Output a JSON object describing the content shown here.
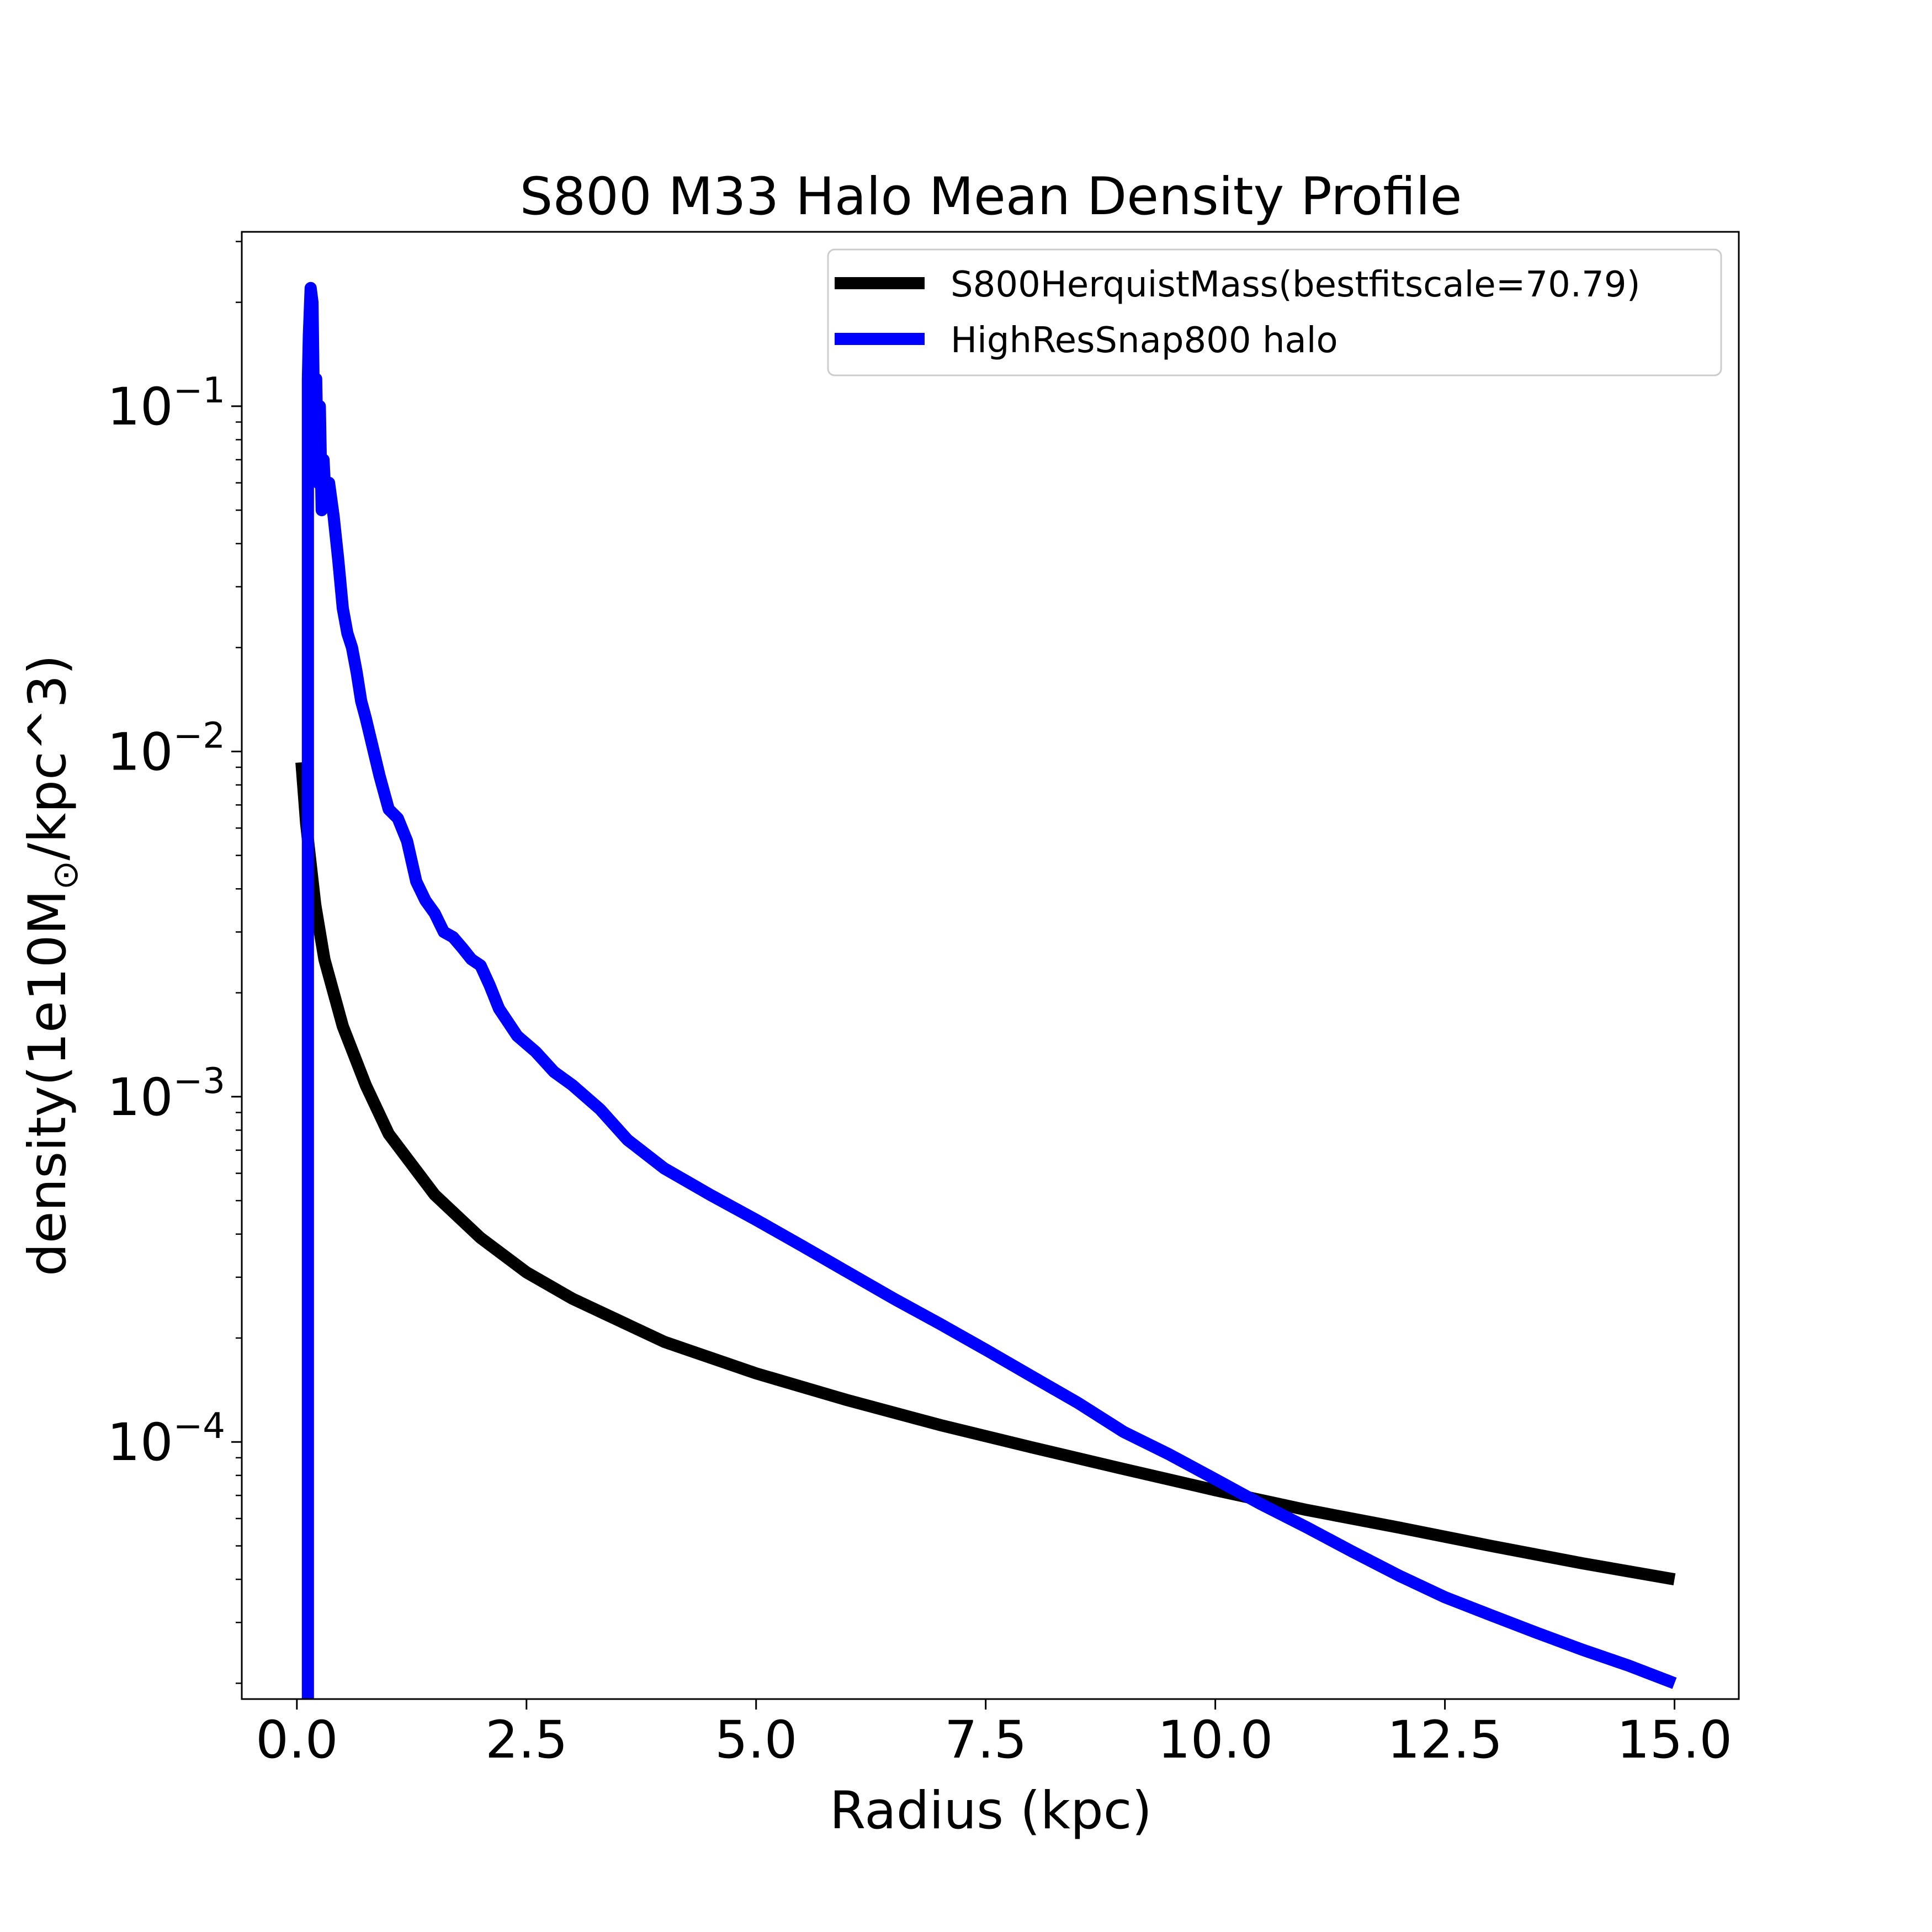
{
  "chart_data": {
    "type": "line",
    "title": "S800 M33 Halo Mean Density Profile",
    "xlabel": "Radius (kpc)",
    "ylabel_main": "density(1e10M",
    "ylabel_sub": "⊙",
    "ylabel_tail": "/kpc^3)",
    "xlim": [
      -0.6,
      15.7
    ],
    "ylim": [
      1.8e-05,
      0.32
    ],
    "yscale": "log",
    "grid": false,
    "legend_position": "top-right",
    "x_ticks": [
      {
        "value": 0.0,
        "label": "0.0"
      },
      {
        "value": 2.5,
        "label": "2.5"
      },
      {
        "value": 5.0,
        "label": "5.0"
      },
      {
        "value": 7.5,
        "label": "7.5"
      },
      {
        "value": 10.0,
        "label": "10.0"
      },
      {
        "value": 12.5,
        "label": "12.5"
      },
      {
        "value": 15.0,
        "label": "15.0"
      }
    ],
    "y_ticks": [
      {
        "value": 0.1,
        "base": "10",
        "exp": "−1"
      },
      {
        "value": 0.01,
        "base": "10",
        "exp": "−2"
      },
      {
        "value": 0.001,
        "base": "10",
        "exp": "−3"
      },
      {
        "value": 0.0001,
        "base": "10",
        "exp": "−4"
      }
    ],
    "series": [
      {
        "name": "S800HerquistMass(bestfitscale=70.79)",
        "color": "#000000",
        "x": [
          0.05,
          0.1,
          0.2,
          0.3,
          0.5,
          0.75,
          1.0,
          1.5,
          2.0,
          2.5,
          3.0,
          4.0,
          5.0,
          6.0,
          7.0,
          8.0,
          9.0,
          10.0,
          11.0,
          12.0,
          13.0,
          14.0,
          15.0
        ],
        "y": [
          0.0093,
          0.0062,
          0.0036,
          0.0025,
          0.0016,
          0.00108,
          0.00078,
          0.00052,
          0.00039,
          0.00031,
          0.00026,
          0.000195,
          0.000158,
          0.000132,
          0.000112,
          9.65e-05,
          8.35e-05,
          7.25e-05,
          6.35e-05,
          5.65e-05,
          5e-05,
          4.45e-05,
          4e-05
        ]
      },
      {
        "name": "HighResSnap800 halo",
        "color": "#0000ff",
        "x": [
          0.12,
          0.12,
          0.13,
          0.15,
          0.17,
          0.19,
          0.21,
          0.23,
          0.25,
          0.27,
          0.29,
          0.31,
          0.35,
          0.4,
          0.45,
          0.5,
          0.55,
          0.6,
          0.65,
          0.7,
          0.75,
          0.8,
          0.9,
          1.0,
          1.1,
          1.2,
          1.3,
          1.4,
          1.5,
          1.6,
          1.7,
          1.8,
          1.9,
          2.0,
          2.1,
          2.2,
          2.4,
          2.6,
          2.8,
          3.0,
          3.3,
          3.6,
          4.0,
          4.5,
          5.0,
          5.5,
          6.0,
          6.5,
          7.0,
          7.5,
          8.0,
          8.5,
          9.0,
          9.5,
          10.0,
          10.5,
          11.0,
          11.5,
          12.0,
          12.5,
          13.0,
          13.5,
          14.0,
          14.5,
          15.0
        ],
        "y": [
          1.8e-05,
          0.12,
          0.16,
          0.22,
          0.2,
          0.08,
          0.12,
          0.06,
          0.1,
          0.05,
          0.07,
          0.055,
          0.06,
          0.048,
          0.036,
          0.026,
          0.022,
          0.02,
          0.017,
          0.014,
          0.0125,
          0.011,
          0.0085,
          0.0068,
          0.0064,
          0.0055,
          0.0042,
          0.0037,
          0.0034,
          0.003,
          0.0029,
          0.0027,
          0.0025,
          0.0024,
          0.0021,
          0.0018,
          0.0015,
          0.00135,
          0.00118,
          0.00108,
          0.00092,
          0.00075,
          0.00062,
          0.00052,
          0.00044,
          0.00037,
          0.00031,
          0.00026,
          0.00022,
          0.000185,
          0.000155,
          0.00013,
          0.000107,
          9.2e-05,
          7.8e-05,
          6.6e-05,
          5.65e-05,
          4.8e-05,
          4.1e-05,
          3.55e-05,
          3.15e-05,
          2.8e-05,
          2.5e-05,
          2.25e-05,
          2e-05
        ]
      }
    ]
  }
}
